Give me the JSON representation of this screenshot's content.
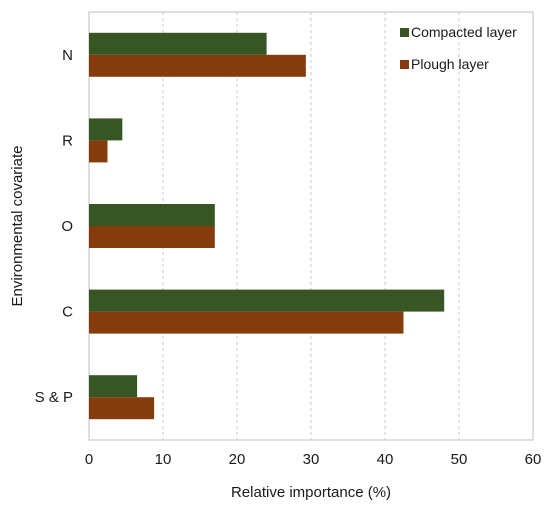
{
  "chart_data": {
    "type": "bar",
    "orientation": "horizontal",
    "title": "",
    "xlabel": "Relative importance (%)",
    "ylabel": "Environmental covariate",
    "categories": [
      "N",
      "R",
      "O",
      "C",
      "S & P"
    ],
    "series": [
      {
        "name": "Compacted layer",
        "color": "#375623",
        "values": [
          24,
          4.5,
          17,
          48,
          6.5
        ]
      },
      {
        "name": "Plough layer",
        "color": "#843c0c",
        "values": [
          29.3,
          2.5,
          17,
          42.5,
          8.8
        ]
      }
    ],
    "xlim": [
      0,
      60
    ],
    "xticks": [
      "0",
      "10",
      "20",
      "30",
      "40",
      "50",
      "60"
    ],
    "grid": "vertical dashed",
    "legend_position": "top-right"
  }
}
